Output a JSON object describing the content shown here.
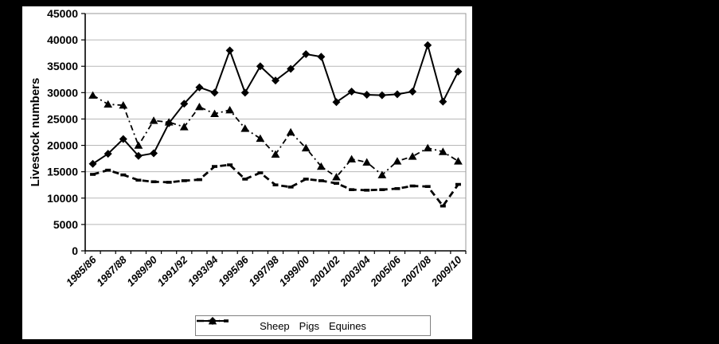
{
  "window": {
    "background_color": "#000000",
    "panel_background_color": "#ffffff"
  },
  "colors": {
    "series": "#000000",
    "gridline": "#b8b8b8",
    "plot_border": "#999999",
    "axis": "#000000",
    "legend_border": "#808080",
    "text": "#000000"
  },
  "chart_data": {
    "type": "line",
    "title": "",
    "xlabel": "",
    "ylabel": "Livestock numbers",
    "ylim": [
      0,
      45000
    ],
    "y_tick_step": 5000,
    "y_tick_labels": [
      "45000",
      "40000",
      "35000",
      "30000",
      "25000",
      "20000",
      "15000",
      "10000",
      "5000",
      "0"
    ],
    "grid": "horizontal",
    "legend_position": "bottom-center",
    "x_categories": [
      "1985/86",
      "1986/87",
      "1987/88",
      "1988/89",
      "1989/90",
      "1990/91",
      "1991/92",
      "1992/93",
      "1993/94",
      "1994/95",
      "1995/96",
      "1996/97",
      "1997/98",
      "1998/99",
      "1999/00",
      "2000/01",
      "2001/02",
      "2002/03",
      "2003/04",
      "2004/05",
      "2005/06",
      "2006/07",
      "2007/08",
      "2008/09",
      "2009/10"
    ],
    "x_tick_every": 2,
    "x_tick_labels": [
      "1985/86",
      "1987/88",
      "1989/90",
      "1991/92",
      "1993/94",
      "1995/96",
      "1997/98",
      "1999/00",
      "2001/02",
      "2003/04",
      "2005/06",
      "2007/08",
      "2009/10"
    ],
    "series": [
      {
        "name": "Sheep",
        "marker": "triangle",
        "line_style": "dash-dot",
        "color": "#000000",
        "values": [
          29500,
          27800,
          27600,
          20000,
          24700,
          24400,
          23500,
          27300,
          26000,
          26700,
          23200,
          21300,
          18300,
          22500,
          19500,
          16000,
          14000,
          17400,
          16800,
          14400,
          17000,
          17900,
          19500,
          18800,
          17000
        ]
      },
      {
        "name": "Pigs",
        "marker": "diamond",
        "line_style": "solid",
        "color": "#000000",
        "values": [
          16500,
          18400,
          21200,
          18000,
          18500,
          24200,
          27900,
          31000,
          30000,
          38000,
          30000,
          35000,
          32300,
          34500,
          37300,
          36800,
          28200,
          30200,
          29600,
          29500,
          29700,
          30200,
          39000,
          28300,
          34000
        ]
      },
      {
        "name": "Equines",
        "marker": "dash",
        "line_style": "dash",
        "color": "#000000",
        "values": [
          14500,
          15300,
          14400,
          13400,
          13100,
          13000,
          13300,
          13500,
          16000,
          16300,
          13600,
          14800,
          12500,
          12100,
          13600,
          13300,
          12800,
          11600,
          11500,
          11600,
          11800,
          12300,
          12200,
          8500,
          12600
        ]
      }
    ]
  }
}
